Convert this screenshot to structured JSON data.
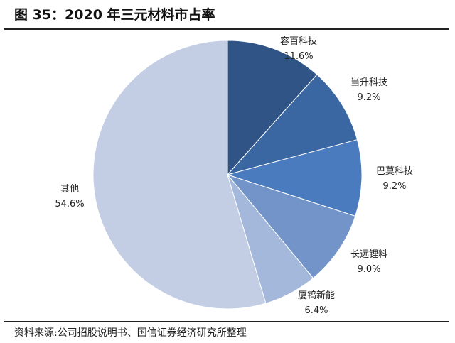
{
  "chart_data": {
    "type": "pie",
    "title": "图 35：2020 年三元材料市占率",
    "categories": [
      "容百科技",
      "当升科技",
      "巴莫科技",
      "长远锂料",
      "厦钨新能",
      "其他"
    ],
    "values": [
      11.6,
      9.2,
      9.2,
      9.0,
      6.4,
      54.6
    ],
    "labels": [
      "11.6%",
      "9.2%",
      "9.2%",
      "9.0%",
      "6.4%",
      "54.6%"
    ],
    "colors": [
      "#2F5485",
      "#3A67A1",
      "#4A7BBE",
      "#7394C8",
      "#A3B8DA",
      "#C3CEE4"
    ],
    "start": "12 o'clock, clockwise",
    "legend": "none"
  },
  "source": "资料来源:公司招股说明书、国信证券经济研究所整理"
}
